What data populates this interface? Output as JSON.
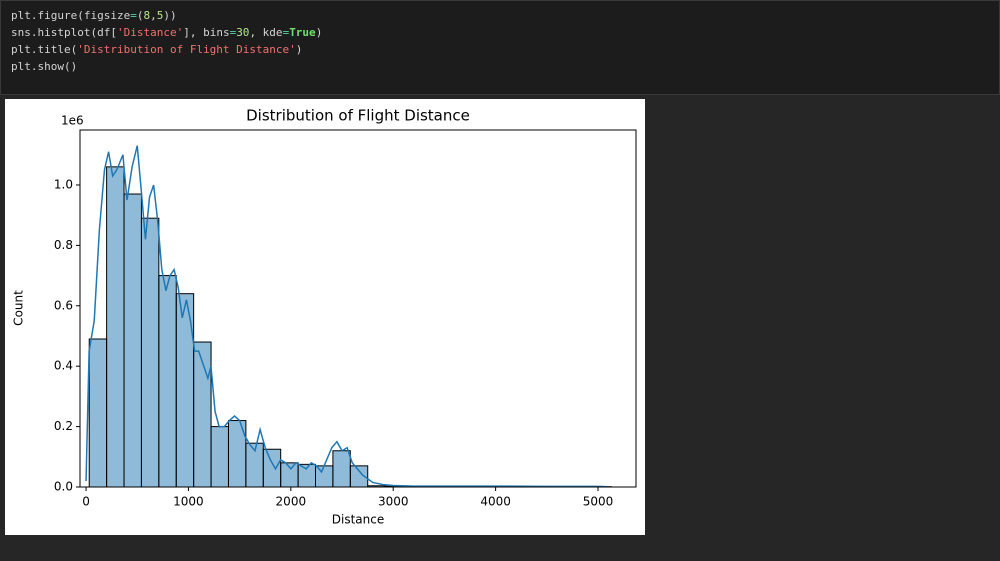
{
  "code": {
    "lines": [
      [
        {
          "text": "plt.figure(figsize",
          "color": "#d4d4d4"
        },
        {
          "text": "=",
          "color": "#56d6a8"
        },
        {
          "text": "(",
          "color": "#d4d4d4"
        },
        {
          "text": "8",
          "color": "#b5e88a"
        },
        {
          "text": ",",
          "color": "#d4d4d4"
        },
        {
          "text": "5",
          "color": "#b5e88a"
        },
        {
          "text": "))",
          "color": "#d4d4d4"
        }
      ],
      [
        {
          "text": "sns.histplot(df[",
          "color": "#d4d4d4"
        },
        {
          "text": "'Distance'",
          "color": "#f07070"
        },
        {
          "text": "], bins",
          "color": "#d4d4d4"
        },
        {
          "text": "=",
          "color": "#56d6a8"
        },
        {
          "text": "30",
          "color": "#b5e88a"
        },
        {
          "text": ", kde",
          "color": "#d4d4d4"
        },
        {
          "text": "=",
          "color": "#56d6a8"
        },
        {
          "text": "True",
          "color": "#6ee06e"
        },
        {
          "text": ")",
          "color": "#d4d4d4"
        }
      ],
      [
        {
          "text": "plt.title(",
          "color": "#d4d4d4"
        },
        {
          "text": "'Distribution of Flight Distance'",
          "color": "#f07070"
        },
        {
          "text": ")",
          "color": "#d4d4d4"
        }
      ],
      [
        {
          "text": "plt.show()",
          "color": "#d4d4d4"
        }
      ]
    ]
  },
  "chart_data": {
    "type": "histogram",
    "title": "Distribution of Flight Distance",
    "x_label": "Distance",
    "y_label": "Count",
    "y_offset_label": "1e6",
    "color": "#1f77b4",
    "edge_color": "#000000",
    "bins": [
      31,
      201,
      371,
      541,
      711,
      881,
      1051,
      1221,
      1391,
      1561,
      1731,
      1901,
      2071,
      2241,
      2411,
      2581,
      2751,
      2921,
      3091,
      3261,
      3431,
      3601,
      3771,
      3941,
      4111,
      4281,
      4451,
      4621,
      4791,
      4961,
      5131
    ],
    "values": [
      0.49,
      1.06,
      0.97,
      0.89,
      0.7,
      0.64,
      0.48,
      0.2,
      0.22,
      0.145,
      0.125,
      0.08,
      0.075,
      0.07,
      0.12,
      0.07,
      0.004,
      0.003,
      0.001,
      0.001,
      0.002,
      0.001,
      0.001,
      0.001,
      0.0005,
      0.001,
      0.0005,
      0.0005,
      0.0003,
      0.001
    ],
    "kde": {
      "x": [
        0,
        30,
        80,
        130,
        180,
        220,
        260,
        300,
        360,
        400,
        450,
        500,
        540,
        580,
        620,
        660,
        700,
        740,
        780,
        820,
        860,
        900,
        940,
        980,
        1020,
        1060,
        1100,
        1150,
        1190,
        1220,
        1260,
        1300,
        1350,
        1400,
        1450,
        1500,
        1550,
        1600,
        1650,
        1700,
        1750,
        1800,
        1850,
        1900,
        1950,
        2000,
        2050,
        2100,
        2150,
        2200,
        2250,
        2300,
        2350,
        2400,
        2450,
        2500,
        2550,
        2600,
        2650,
        2700,
        2800,
        2900,
        3000,
        3200,
        3500,
        4000,
        4500,
        5000,
        5100
      ],
      "values": [
        0.02,
        0.45,
        0.55,
        0.85,
        1.05,
        1.11,
        1.03,
        1.05,
        1.1,
        0.95,
        1.06,
        1.13,
        0.98,
        0.82,
        0.96,
        1.0,
        0.88,
        0.72,
        0.65,
        0.7,
        0.72,
        0.66,
        0.56,
        0.62,
        0.55,
        0.45,
        0.45,
        0.4,
        0.36,
        0.4,
        0.25,
        0.2,
        0.2,
        0.22,
        0.235,
        0.22,
        0.17,
        0.14,
        0.12,
        0.19,
        0.13,
        0.09,
        0.06,
        0.09,
        0.08,
        0.06,
        0.08,
        0.07,
        0.06,
        0.08,
        0.07,
        0.05,
        0.09,
        0.13,
        0.15,
        0.12,
        0.13,
        0.08,
        0.06,
        0.04,
        0.015,
        0.008,
        0.005,
        0.003,
        0.003,
        0.003,
        0.002,
        0.002,
        0.001
      ]
    },
    "xlim": [
      -59,
      5371
    ],
    "ylim": [
      0,
      1.182
    ],
    "xticks": [
      0,
      1000,
      2000,
      3000,
      4000,
      5000
    ],
    "yticks": [
      {
        "value": 0,
        "label": "0.0"
      },
      {
        "value": 0.2,
        "label": "0.2"
      },
      {
        "value": 0.4,
        "label": "0.4"
      },
      {
        "value": 0.6,
        "label": "0.6"
      },
      {
        "value": 0.8,
        "label": "0.8"
      },
      {
        "value": 1.0,
        "label": "1.0"
      }
    ]
  }
}
